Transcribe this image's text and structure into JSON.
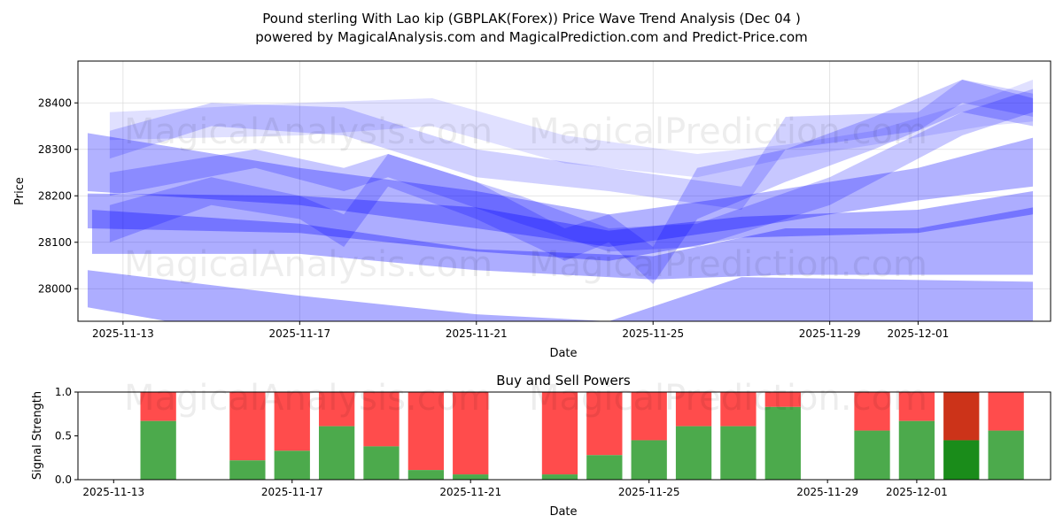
{
  "title_line1": "Pound sterling With Lao kip (GBPLAK(Forex)) Price Wave Trend Analysis (Dec 04 )",
  "title_line2": "powered by MagicalAnalysis.com and MagicalPrediction.com and Predict-Price.com",
  "watermarks": [
    "MagicalAnalysis.com",
    "MagicalPrediction.com"
  ],
  "chart_data": [
    {
      "type": "area",
      "title": "",
      "xlabel": "Date",
      "ylabel": "Price",
      "ylim": [
        27930,
        28490
      ],
      "x_unit": "days since 2025-11-13",
      "xlim": [
        -1.02,
        21.0
      ],
      "xticks": [
        {
          "day": 0,
          "label": "2025-11-13"
        },
        {
          "day": 4,
          "label": "2025-11-17"
        },
        {
          "day": 8,
          "label": "2025-11-21"
        },
        {
          "day": 12,
          "label": "2025-11-25"
        },
        {
          "day": 16,
          "label": "2025-11-29"
        },
        {
          "day": 18,
          "label": "2025-12-01"
        }
      ],
      "yticks": [
        28000,
        28100,
        28200,
        28300,
        28400
      ],
      "color": "#0000ff",
      "bands": [
        {
          "opacity": 0.32,
          "points": [
            [
              -0.8,
              27960,
              28040
            ],
            [
              4,
              27880,
              27985
            ],
            [
              8,
              27800,
              27945
            ],
            [
              11,
              27780,
              27930
            ],
            [
              14,
              27860,
              28025
            ],
            [
              20.6,
              27870,
              28015
            ]
          ]
        },
        {
          "opacity": 0.32,
          "points": [
            [
              -0.7,
              28075,
              28170
            ],
            [
              4,
              28075,
              28140
            ],
            [
              8,
              28040,
              28085
            ],
            [
              12,
              28020,
              28070
            ],
            [
              15,
              28030,
              28130
            ],
            [
              18,
              28030,
              28130
            ],
            [
              20.6,
              28030,
              28175
            ]
          ]
        },
        {
          "opacity": 0.32,
          "points": [
            [
              -0.8,
              28130,
              28205
            ],
            [
              4,
              28120,
              28200
            ],
            [
              8,
              28080,
              28175
            ],
            [
              11,
              28060,
              28125
            ],
            [
              14,
              28110,
              28155
            ],
            [
              18,
              28120,
              28170
            ],
            [
              20.6,
              28160,
              28210
            ]
          ]
        },
        {
          "opacity": 0.3,
          "points": [
            [
              -0.8,
              28210,
              28335
            ],
            [
              4,
              28180,
              28260
            ],
            [
              8,
              28130,
              28210
            ],
            [
              11,
              28090,
              28160
            ],
            [
              14,
              28130,
              28200
            ],
            [
              18,
              28190,
              28260
            ],
            [
              20.6,
              28220,
              28325
            ]
          ]
        },
        {
          "opacity": 0.12,
          "points": [
            [
              -0.3,
              28320,
              28380
            ],
            [
              4,
              28330,
              28400
            ],
            [
              7,
              28350,
              28410
            ],
            [
              10,
              28270,
              28330
            ],
            [
              13,
              28240,
              28290
            ],
            [
              15,
              28280,
              28310
            ],
            [
              17,
              28310,
              28340
            ],
            [
              19.5,
              28350,
              28410
            ],
            [
              20.6,
              28360,
              28450
            ]
          ]
        },
        {
          "opacity": 0.18,
          "points": [
            [
              -0.3,
              28280,
              28340
            ],
            [
              2,
              28350,
              28400
            ],
            [
              5,
              28330,
              28390
            ],
            [
              8,
              28240,
              28300
            ],
            [
              11,
              28210,
              28260
            ],
            [
              14,
              28170,
              28220
            ],
            [
              15,
              28300,
              28370
            ],
            [
              18,
              28340,
              28380
            ],
            [
              19,
              28400,
              28450
            ],
            [
              20.6,
              28370,
              28420
            ]
          ]
        },
        {
          "opacity": 0.22,
          "points": [
            [
              -0.3,
              28100,
              28180
            ],
            [
              2,
              28180,
              28240
            ],
            [
              4,
              28150,
              28200
            ],
            [
              5,
              28090,
              28160
            ],
            [
              6,
              28220,
              28290
            ],
            [
              8,
              28150,
              28230
            ],
            [
              10,
              28060,
              28130
            ],
            [
              11,
              28100,
              28160
            ],
            [
              12,
              28010,
              28090
            ],
            [
              13,
              28150,
              28260
            ],
            [
              15,
              28230,
              28300
            ],
            [
              17,
              28300,
              28370
            ],
            [
              19,
              28380,
              28450
            ],
            [
              20.6,
              28350,
              28410
            ]
          ]
        },
        {
          "opacity": 0.22,
          "points": [
            [
              -0.3,
              28200,
              28250
            ],
            [
              3,
              28260,
              28300
            ],
            [
              5,
              28210,
              28260
            ],
            [
              6,
              28240,
              28290
            ],
            [
              9,
              28140,
              28200
            ],
            [
              11,
              28080,
              28130
            ],
            [
              13,
              28090,
              28140
            ],
            [
              16,
              28180,
              28240
            ],
            [
              19,
              28330,
              28380
            ],
            [
              20.6,
              28380,
              28430
            ]
          ]
        }
      ]
    },
    {
      "type": "bar",
      "title": "Buy and Sell Powers",
      "xlabel": "Date",
      "ylabel": "Signal Strength",
      "ylim": [
        0,
        1
      ],
      "x_unit": "days since 2025-11-13",
      "xlim": [
        -0.8,
        21.0
      ],
      "yticks": [
        "0.0",
        "0.5",
        "1.0"
      ],
      "xticks": [
        {
          "day": 0,
          "label": "2025-11-13"
        },
        {
          "day": 4,
          "label": "2025-11-17"
        },
        {
          "day": 8,
          "label": "2025-11-21"
        },
        {
          "day": 12,
          "label": "2025-11-25"
        },
        {
          "day": 16,
          "label": "2025-11-29"
        },
        {
          "day": 18,
          "label": "2025-12-01"
        }
      ],
      "buy_color": "#4caa4c",
      "sell_color": "#ff4c4c",
      "highlight_buy_color": "#1a8c1a",
      "highlight_sell_color": "#cc3319",
      "days": [
        1,
        3,
        4,
        5,
        6,
        7,
        8,
        10,
        11,
        12,
        13,
        14,
        15,
        17,
        18,
        19,
        20
      ],
      "dates": [
        "2025-11-14",
        "2025-11-16",
        "2025-11-17",
        "2025-11-18",
        "2025-11-19",
        "2025-11-20",
        "2025-11-21",
        "2025-11-23",
        "2025-11-24",
        "2025-11-25",
        "2025-11-26",
        "2025-11-27",
        "2025-11-28",
        "2025-11-30",
        "2025-12-01",
        "2025-12-02",
        "2025-12-03"
      ],
      "buy": [
        0.67,
        0.22,
        0.33,
        0.61,
        0.38,
        0.11,
        0.06,
        0.06,
        0.28,
        0.45,
        0.61,
        0.61,
        0.83,
        0.56,
        0.67,
        0.45,
        0.56
      ],
      "highlight_index": 15
    }
  ]
}
